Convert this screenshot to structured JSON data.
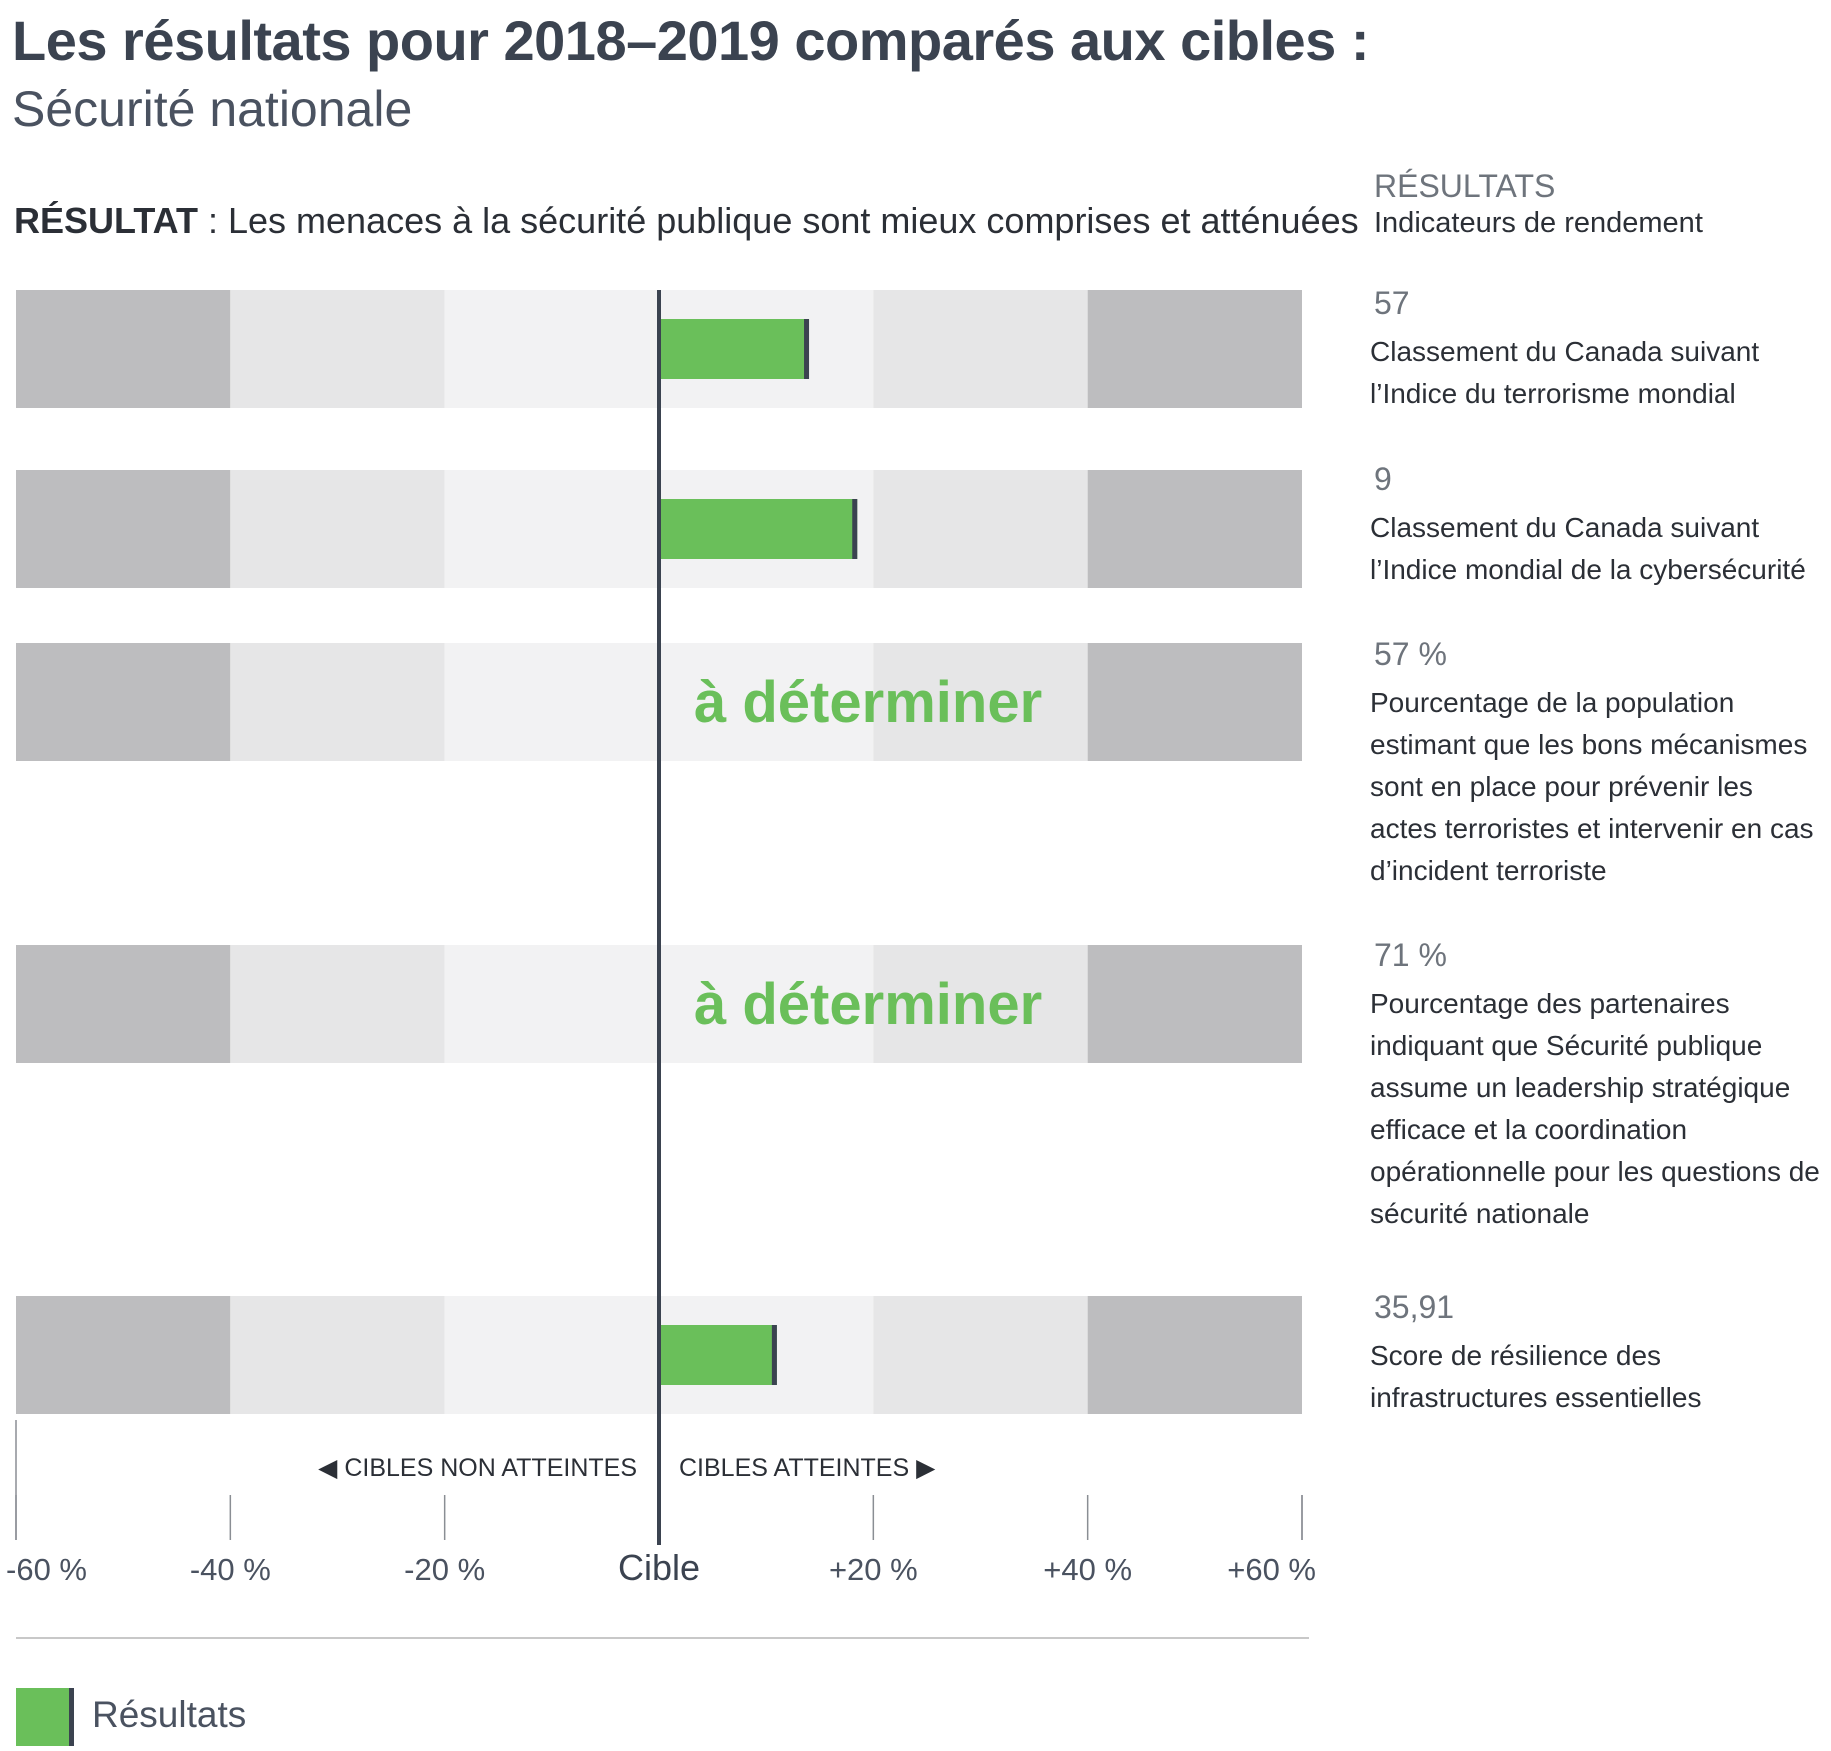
{
  "header": {
    "title": "Les résultats pour 2018–2019 comparés aux cibles :",
    "subtitle": "Sécurité nationale"
  },
  "outcome": {
    "prefix": "RÉSULTAT",
    "text": " : Les menaces à la sécurité publique sont mieux comprises et atténuées"
  },
  "sidebar": {
    "heading": "RÉSULTATS",
    "subheading": "Indicateurs de rendement",
    "indicators": [
      {
        "value": "57",
        "label": "Classement du Canada suivant l’Indice du terrorisme mondial"
      },
      {
        "value": "9",
        "label": "Classement du Canada suivant l’Indice mondial de la cybersécurité"
      },
      {
        "value": "57 %",
        "label": "Pourcentage de la population estimant que les bons mécanismes sont en place pour prévenir les actes terroristes et intervenir en cas d’incident terroriste"
      },
      {
        "value": "71 %",
        "label": "Pourcentage des partenaires indiquant que Sécurité publique assume un leadership stratégique efficace et la coordination opérationnelle pour les questions de sécurité nationale"
      },
      {
        "value": "35,91",
        "label": "Score de résilience des infrastructures essentielles"
      }
    ]
  },
  "chart_data": {
    "type": "bar",
    "orientation": "horizontal",
    "xlim": [
      -60,
      60
    ],
    "x_tick_labels": [
      "-60 %",
      "-40 %",
      "-20 %",
      "Cible",
      "+20 %",
      "+40 %",
      "+60 %"
    ],
    "direction_labels": {
      "left": "◀ CIBLES NON ATTEINTES",
      "right": "CIBLES ATTEINTES ▶"
    },
    "series": [
      {
        "name": "Résultats",
        "values": [
          14,
          18.5,
          null,
          null,
          11
        ]
      }
    ],
    "pending_label": "à déterminer",
    "colors": {
      "result": "#6abf5a",
      "target_line": "#3b4350",
      "band_outer": "#bdbdbf",
      "band_mid": "#e6e6e7",
      "band_inner": "#f2f2f3",
      "pending_text": "#6abf5a"
    }
  },
  "legend": {
    "label": "Résultats"
  }
}
